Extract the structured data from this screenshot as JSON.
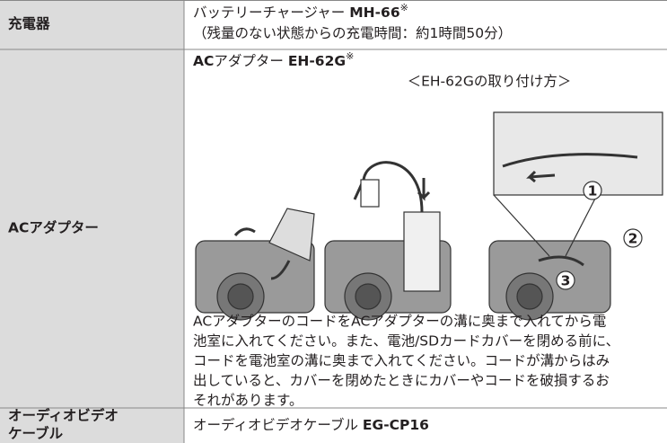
{
  "table": {
    "rows": [
      {
        "label": [
          "充電器"
        ],
        "name": "バッテリーチャージャー ",
        "model": "MH-66",
        "mark": "※",
        "note": "（残量のない状態からの充電時間：約1時間50分）"
      },
      {
        "label": [
          "ACアダプター"
        ],
        "name": "AC",
        "name2": "アダプター ",
        "model": "EH-62G",
        "mark": "※",
        "caption": "＜EH-62Gの取り付け方＞",
        "callouts": [
          "1",
          "2",
          "3"
        ],
        "paragraph": [
          "ACアダプターのコードをACアダプターの溝に奥まで入れてから電",
          "池室に入れてください。また、電池/SDカードカバーを閉める前に、",
          "コードを電池室の溝に奥まで入れてください。コードが溝からはみ",
          "出していると、カバーを閉めたときにカバーやコードを破損するお",
          "それがあります。"
        ]
      },
      {
        "label": [
          "オーディオビデオ",
          "ケーブル"
        ],
        "name": "オーディオビデオケーブル ",
        "model": "EG-CP16"
      }
    ]
  }
}
